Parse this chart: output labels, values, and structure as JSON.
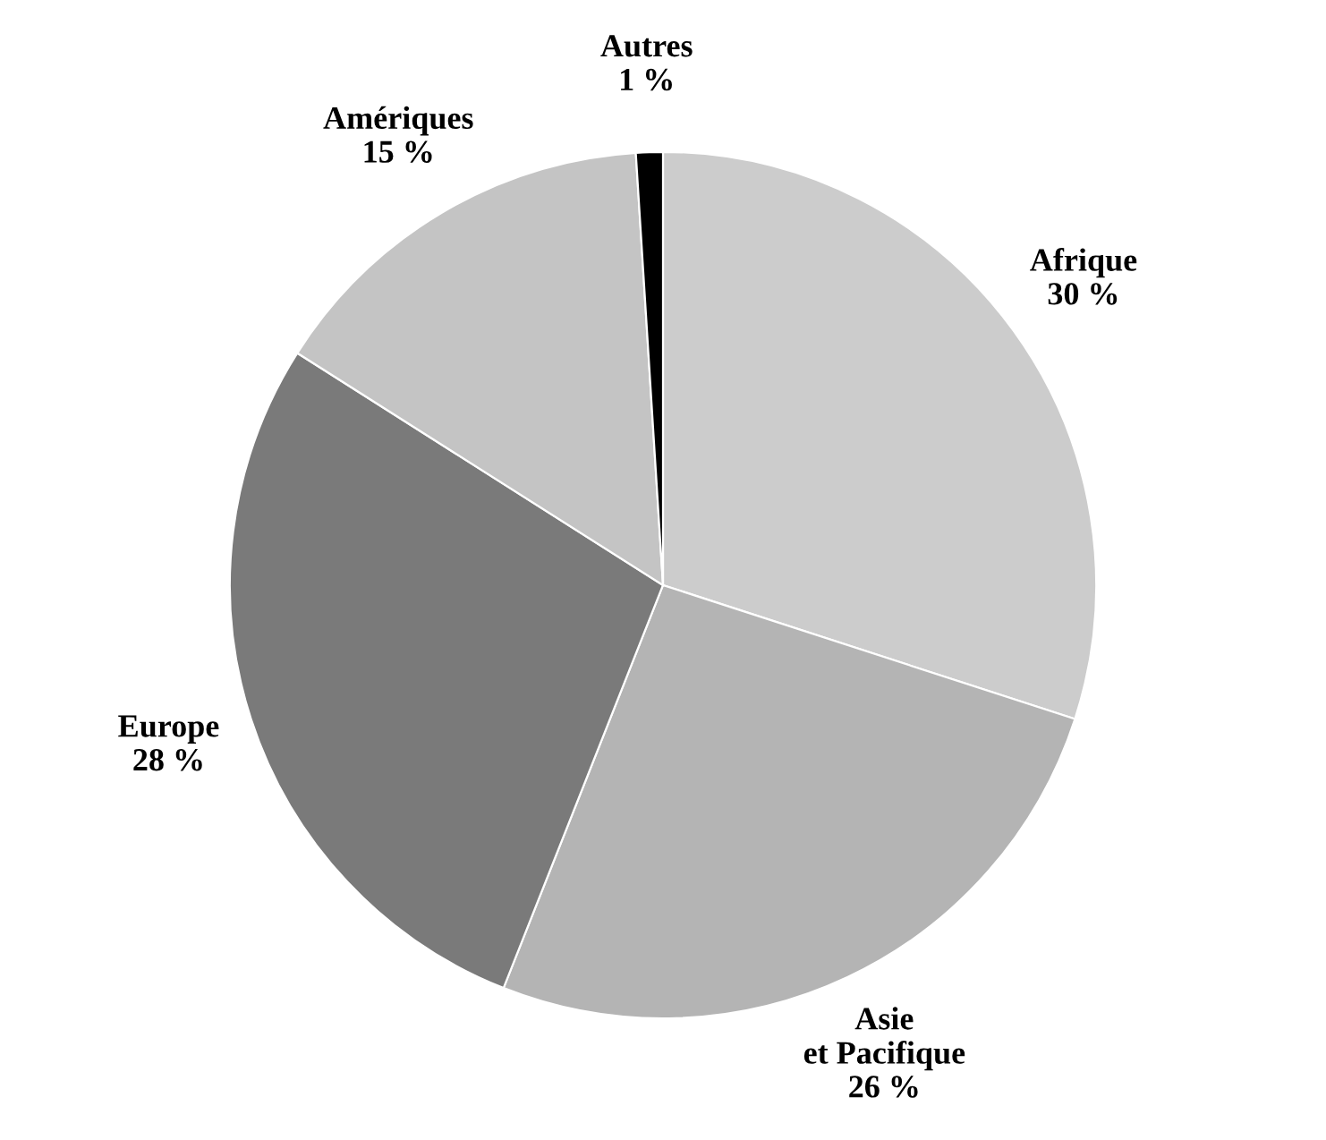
{
  "chart_data": {
    "type": "pie",
    "categories": [
      "Afrique",
      "Asie\net Pacifique",
      "Europe",
      "Amériques",
      "Autres"
    ],
    "values": [
      30,
      26,
      28,
      15,
      1
    ],
    "colors": [
      "#cccccc",
      "#b4b4b4",
      "#7a7a7a",
      "#c4c4c4",
      "#000000"
    ],
    "value_labels": [
      "30 %",
      "26 %",
      "28 %",
      "15 %",
      "1 %"
    ]
  }
}
